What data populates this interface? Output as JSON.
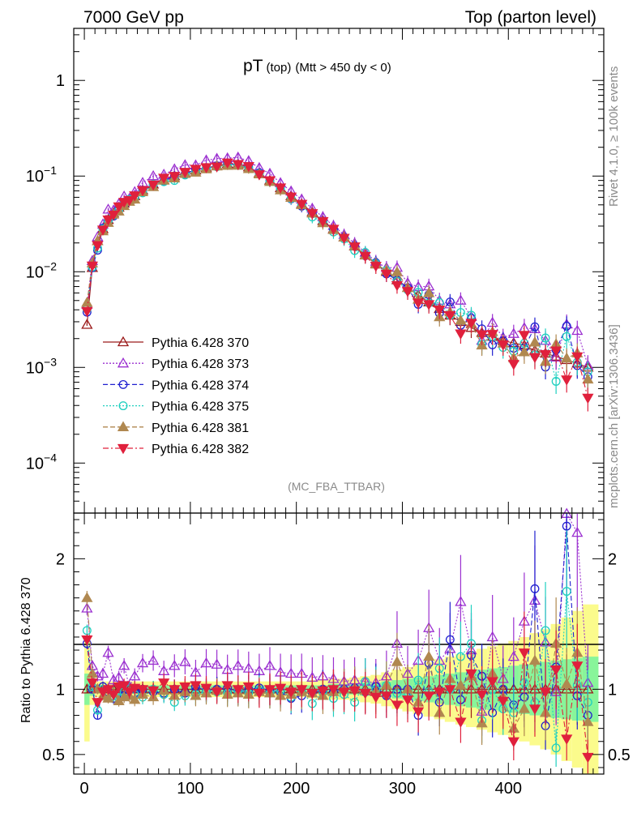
{
  "header": {
    "left": "7000 GeV pp",
    "right": "Top (parton level)"
  },
  "side": {
    "rivet": "Rivet 4.1.0, ≥ 100k events",
    "mcplots": "mcplots.cern.ch [arXiv:1306.3436]"
  },
  "chart_data": {
    "type": "line",
    "title": "pT",
    "title_sub": "(top)",
    "title_cut": "(Mtt > 450 dy < 0)",
    "analysis": "(MC_FBA_TTBAR)",
    "xlabel": "",
    "ylabel": "",
    "xlim": [
      -10,
      490
    ],
    "ylim": [
      3e-05,
      3.5
    ],
    "yscale": "log",
    "y_ticks": [
      {
        "value": 1,
        "label": "1"
      },
      {
        "value": 0.1,
        "label": "10^-1"
      },
      {
        "value": 0.01,
        "label": "10^-2"
      },
      {
        "value": 0.001,
        "label": "10^-3"
      },
      {
        "value": 0.0001,
        "label": "10^-4"
      }
    ],
    "x_ticks": [
      0,
      100,
      200,
      300,
      400
    ],
    "x_tick_labels": [
      "0",
      "100",
      "200",
      "300",
      "400"
    ],
    "bin_centers": [
      2.5,
      7.5,
      12.5,
      17.5,
      22.5,
      27.5,
      32.5,
      37.5,
      42.5,
      47.5,
      55,
      65,
      75,
      85,
      95,
      105,
      115,
      125,
      135,
      145,
      155,
      165,
      175,
      185,
      195,
      205,
      215,
      225,
      235,
      245,
      255,
      265,
      275,
      285,
      295,
      305,
      315,
      325,
      335,
      345,
      355,
      365,
      375,
      385,
      395,
      405,
      415,
      425,
      435,
      445,
      455,
      465,
      475
    ],
    "reference": [
      0.0028,
      0.011,
      0.021,
      0.028,
      0.035,
      0.041,
      0.047,
      0.052,
      0.057,
      0.062,
      0.071,
      0.082,
      0.091,
      0.1,
      0.108,
      0.115,
      0.122,
      0.128,
      0.134,
      0.133,
      0.124,
      0.107,
      0.09,
      0.075,
      0.062,
      0.051,
      0.042,
      0.034,
      0.028,
      0.023,
      0.0185,
      0.015,
      0.0122,
      0.01,
      0.0082,
      0.0068,
      0.0057,
      0.0048,
      0.0041,
      0.0035,
      0.003,
      0.0026,
      0.0023,
      0.0021,
      0.0019,
      0.0018,
      0.0017,
      0.0015,
      0.0014,
      0.0013,
      0.0012,
      0.0011,
      0.001
    ],
    "series": [
      {
        "name": "Pythia 6.428 370",
        "color": "#9b1b1b",
        "dash": "solid",
        "marker": "triangle-up-open",
        "ratio": [
          1.0,
          1.0,
          1.0,
          1.0,
          1.0,
          1.0,
          1.0,
          1.0,
          1.0,
          1.0,
          1.0,
          1.0,
          1.0,
          1.0,
          1.0,
          1.0,
          1.0,
          1.0,
          1.0,
          1.0,
          1.0,
          1.0,
          1.0,
          1.0,
          1.0,
          1.0,
          1.0,
          1.0,
          1.0,
          1.0,
          1.0,
          1.0,
          1.0,
          1.0,
          1.0,
          1.0,
          1.0,
          1.0,
          1.0,
          1.0,
          1.0,
          1.0,
          1.0,
          1.0,
          1.0,
          1.0,
          1.0,
          1.0,
          1.0,
          1.0,
          1.0,
          1.0,
          1.0
        ]
      },
      {
        "name": "Pythia 6.428 373",
        "color": "#9b30d0",
        "dash": "dotted",
        "marker": "triangle-up-open",
        "ratio": [
          1.62,
          1.18,
          1.1,
          1.12,
          1.28,
          1.07,
          1.09,
          1.18,
          1.02,
          1.1,
          1.2,
          1.22,
          1.14,
          1.18,
          1.21,
          1.13,
          1.2,
          1.19,
          1.15,
          1.18,
          1.16,
          1.14,
          1.18,
          1.13,
          1.12,
          1.12,
          1.09,
          1.1,
          1.08,
          1.06,
          1.07,
          1.06,
          1.05,
          1.1,
          1.35,
          1.12,
          1.22,
          1.47,
          1.22,
          1.31,
          1.67,
          1.3,
          0.83,
          1.4,
          1.08,
          1.25,
          1.52,
          1.68,
          1.36,
          0.98,
          2.35,
          2.2,
          1.05
        ]
      },
      {
        "name": "Pythia 6.428 374",
        "color": "#2020d0",
        "dash": "dashed",
        "marker": "circle-open",
        "ratio": [
          1.35,
          1.0,
          0.8,
          1.02,
          0.98,
          0.93,
          0.96,
          0.95,
          1.0,
          0.97,
          1.0,
          0.98,
          0.97,
          1.0,
          0.97,
          1.02,
          0.99,
          1.0,
          1.01,
          0.98,
          1.0,
          1.01,
          0.99,
          0.98,
          0.93,
          0.95,
          0.97,
          1.0,
          0.98,
          1.0,
          1.01,
          0.98,
          1.02,
          0.95,
          1.0,
          1.0,
          0.8,
          1.2,
          0.9,
          1.38,
          0.92,
          1.26,
          1.1,
          0.82,
          1.0,
          0.88,
          0.94,
          1.77,
          0.72,
          1.17,
          2.25,
          0.95,
          0.8
        ]
      },
      {
        "name": "Pythia 6.428 375",
        "color": "#20d0c0",
        "dash": "dotted",
        "marker": "circle-open",
        "ratio": [
          1.45,
          1.02,
          0.84,
          1.0,
          0.97,
          0.95,
          0.93,
          0.98,
          1.0,
          0.96,
          0.94,
          1.0,
          0.96,
          0.9,
          0.95,
          0.96,
          0.98,
          0.98,
          0.97,
          0.99,
          0.97,
          0.99,
          0.97,
          0.99,
          0.94,
          0.98,
          0.89,
          0.98,
          0.93,
          0.96,
          0.9,
          1.06,
          1.0,
          1.03,
          0.97,
          0.95,
          1.07,
          0.98,
          1.16,
          1.0,
          1.25,
          1.35,
          0.76,
          1.0,
          0.85,
          0.82,
          1.05,
          0.9,
          1.45,
          0.55,
          1.75,
          1.03,
          0.9
        ]
      },
      {
        "name": "Pythia 6.428 381",
        "color": "#b08850",
        "dash": "dashed",
        "marker": "triangle-up-filled",
        "ratio": [
          1.7,
          1.12,
          1.0,
          0.95,
          0.93,
          0.97,
          0.91,
          0.94,
          0.95,
          0.92,
          0.96,
          0.94,
          0.99,
          0.95,
          0.98,
          0.95,
          0.97,
          0.99,
          0.96,
          0.97,
          0.96,
          0.98,
          0.97,
          0.95,
          0.96,
          0.98,
          0.97,
          0.95,
          0.98,
          1.0,
          1.01,
          0.99,
          0.98,
          1.03,
          1.21,
          1.0,
          0.9,
          1.25,
          0.82,
          1.08,
          1.03,
          1.1,
          0.74,
          1.12,
          0.94,
          0.7,
          0.85,
          1.22,
          0.82,
          1.35,
          1.04,
          1.28,
          0.75
        ]
      },
      {
        "name": "Pythia 6.428 382",
        "color": "#e0203c",
        "dash": "dashdot",
        "marker": "triangle-down-filled",
        "ratio": [
          1.38,
          1.05,
          0.9,
          0.98,
          1.0,
          0.96,
          1.02,
          1.03,
          0.98,
          1.01,
          1.0,
          0.99,
          1.05,
          1.0,
          1.02,
          1.03,
          1.01,
          0.98,
          1.03,
          1.0,
          1.02,
          0.97,
          1.0,
          1.01,
          0.98,
          1.0,
          0.97,
          0.99,
          1.0,
          0.98,
          0.99,
          0.97,
          0.94,
          0.95,
          0.88,
          0.92,
          0.83,
          0.95,
          0.98,
          1.0,
          0.75,
          1.12,
          0.96,
          1.06,
          0.91,
          0.6,
          1.28,
          0.85,
          0.98,
          1.15,
          0.62,
          1.18,
          0.48
        ]
      }
    ],
    "legend": [
      "Pythia 6.428 370",
      "Pythia 6.428 373",
      "Pythia 6.428 374",
      "Pythia 6.428 375",
      "Pythia 6.428 381",
      "Pythia 6.428 382"
    ],
    "legend_position": "bottom-left",
    "ratio_panel": {
      "ylabel": "Ratio to Pythia 6.428 370",
      "ylim": [
        0.35,
        2.35
      ],
      "y_ticks": [
        0.5,
        1,
        2
      ],
      "y_tick_labels": [
        "0.5",
        "1",
        "2"
      ],
      "band_inner_halfwidth": [
        0.12,
        0.05,
        0.03,
        0.03,
        0.03,
        0.03,
        0.03,
        0.03,
        0.03,
        0.03,
        0.03,
        0.03,
        0.03,
        0.03,
        0.03,
        0.03,
        0.03,
        0.03,
        0.03,
        0.03,
        0.03,
        0.03,
        0.03,
        0.03,
        0.03,
        0.03,
        0.03,
        0.03,
        0.04,
        0.04,
        0.04,
        0.05,
        0.05,
        0.06,
        0.07,
        0.08,
        0.09,
        0.1,
        0.11,
        0.12,
        0.13,
        0.14,
        0.15,
        0.16,
        0.17,
        0.18,
        0.19,
        0.2,
        0.21,
        0.22,
        0.23,
        0.24,
        0.25
      ],
      "band_outer_halfwidth": [
        0.4,
        0.12,
        0.06,
        0.06,
        0.06,
        0.06,
        0.06,
        0.06,
        0.06,
        0.06,
        0.06,
        0.06,
        0.06,
        0.06,
        0.06,
        0.06,
        0.06,
        0.06,
        0.06,
        0.06,
        0.06,
        0.06,
        0.06,
        0.06,
        0.06,
        0.06,
        0.07,
        0.07,
        0.08,
        0.08,
        0.09,
        0.1,
        0.11,
        0.13,
        0.15,
        0.17,
        0.19,
        0.21,
        0.23,
        0.25,
        0.27,
        0.29,
        0.31,
        0.33,
        0.35,
        0.37,
        0.4,
        0.43,
        0.46,
        0.5,
        0.55,
        0.6,
        0.65
      ]
    }
  }
}
